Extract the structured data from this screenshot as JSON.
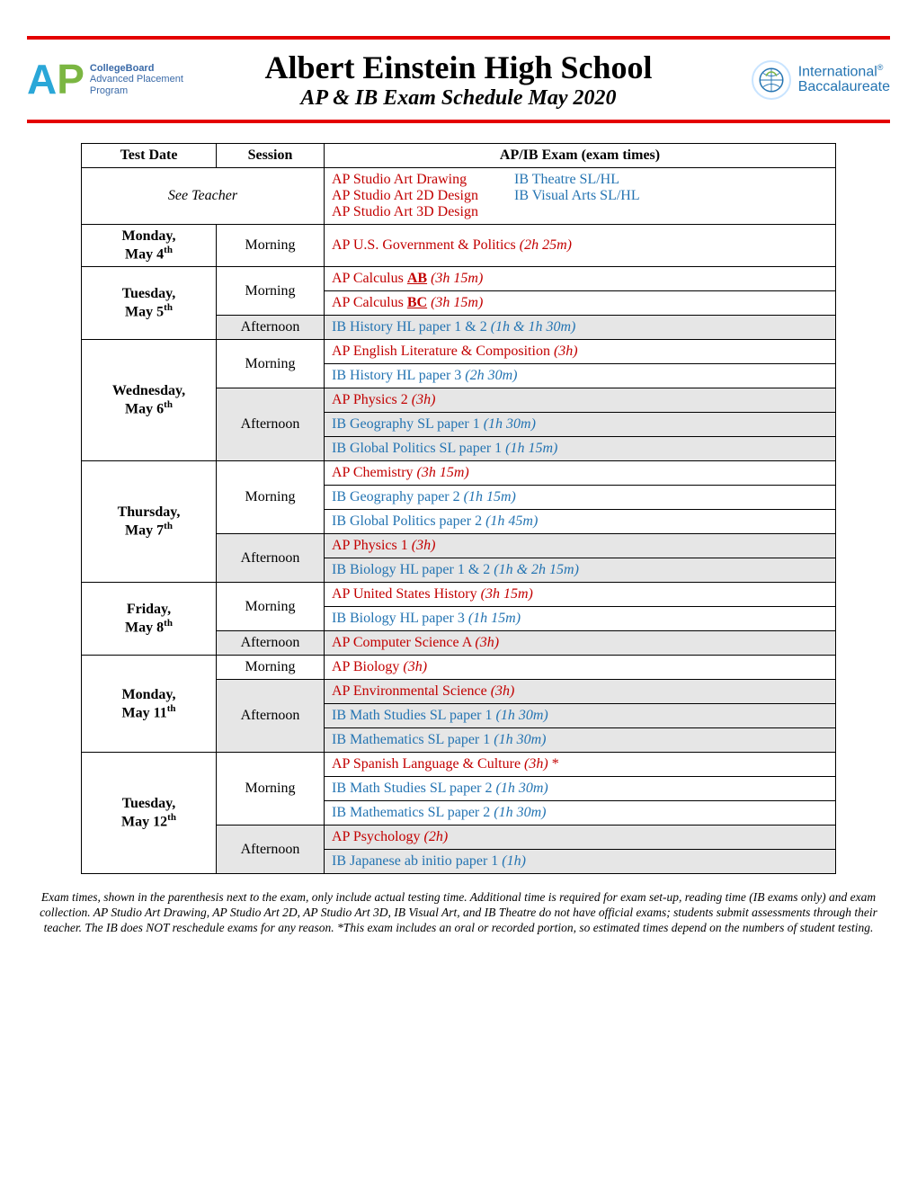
{
  "colors": {
    "red_rule": "#e40000",
    "ap_red": "#c20000",
    "ib_blue": "#2474b2",
    "afternoon_bg": "#e6e6e6",
    "ap_a": "#2aa7d8",
    "ap_p": "#7bb642",
    "cb_text": "#3a6aa8"
  },
  "header": {
    "school": "Albert Einstein High School",
    "subtitle": "AP & IB Exam Schedule May 2020",
    "ap_logo": {
      "a": "A",
      "p": "P",
      "cb": "CollegeBoard",
      "sub1": "Advanced Placement",
      "sub2": "Program"
    },
    "ib_logo": {
      "line1": "International",
      "line2": "Baccalaureate",
      "reg": "®"
    }
  },
  "columns": {
    "date": "Test Date",
    "session": "Session",
    "exam": "AP/IB Exam (exam times)"
  },
  "see_teacher": {
    "label": "See Teacher",
    "ap": [
      "AP Studio Art Drawing",
      "AP Studio Art 2D Design",
      "AP Studio Art 3D Design"
    ],
    "ib": [
      "IB Theatre SL/HL",
      "IB Visual Arts SL/HL"
    ]
  },
  "rows": [
    {
      "day_name": "Monday,",
      "day_date": "May 4",
      "day_sup": "th",
      "sessions": [
        {
          "name": "Morning",
          "aft": false,
          "exams": [
            {
              "type": "ap",
              "text": "AP U.S. Government & Politics ",
              "time": "(2h 25m)"
            }
          ]
        }
      ]
    },
    {
      "day_name": "Tuesday,",
      "day_date": "May 5",
      "day_sup": "th",
      "sessions": [
        {
          "name": "Morning",
          "aft": false,
          "exams": [
            {
              "type": "ap",
              "prefix": "AP Calculus ",
              "underline": "AB",
              "time": " (3h 15m)"
            },
            {
              "type": "ap",
              "prefix": "AP Calculus ",
              "underline": "BC",
              "time": " (3h 15m)"
            }
          ]
        },
        {
          "name": "Afternoon",
          "aft": true,
          "exams": [
            {
              "type": "ib",
              "text": "IB History HL paper 1 & 2 ",
              "time": "(1h & 1h 30m)"
            }
          ]
        }
      ]
    },
    {
      "day_name": "Wednesday,",
      "day_date": "May 6",
      "day_sup": "th",
      "sessions": [
        {
          "name": "Morning",
          "aft": false,
          "exams": [
            {
              "type": "ap",
              "text": "AP English Literature & Composition ",
              "time": "(3h)"
            },
            {
              "type": "ib",
              "text": "IB History HL paper 3 ",
              "time": "(2h 30m)"
            }
          ]
        },
        {
          "name": "Afternoon",
          "aft": true,
          "exams": [
            {
              "type": "ap",
              "text": "AP Physics 2 ",
              "time": "(3h)"
            },
            {
              "type": "ib",
              "text": "IB Geography SL paper 1 ",
              "time": "(1h 30m)"
            },
            {
              "type": "ib",
              "text": "IB Global Politics SL paper 1 ",
              "time": "(1h 15m)"
            }
          ]
        }
      ]
    },
    {
      "day_name": "Thursday,",
      "day_date": "May 7",
      "day_sup": "th",
      "sessions": [
        {
          "name": "Morning",
          "aft": false,
          "exams": [
            {
              "type": "ap",
              "text": "AP Chemistry ",
              "time": "(3h 15m)"
            },
            {
              "type": "ib",
              "text": "IB Geography paper 2 ",
              "time": "(1h 15m)"
            },
            {
              "type": "ib",
              "text": "IB Global Politics paper 2 ",
              "time": "(1h 45m)"
            }
          ]
        },
        {
          "name": "Afternoon",
          "aft": true,
          "exams": [
            {
              "type": "ap",
              "text": "AP Physics 1 ",
              "time": "(3h)"
            },
            {
              "type": "ib",
              "text": "IB Biology HL paper 1 & 2 ",
              "time": "(1h & 2h 15m)"
            }
          ]
        }
      ]
    },
    {
      "day_name": "Friday,",
      "day_date": "May 8",
      "day_sup": "th",
      "sessions": [
        {
          "name": "Morning",
          "aft": false,
          "exams": [
            {
              "type": "ap",
              "text": "AP United States History ",
              "time": "(3h 15m)"
            },
            {
              "type": "ib",
              "text": "IB Biology HL paper 3 ",
              "time": "(1h 15m)"
            }
          ]
        },
        {
          "name": "Afternoon",
          "aft": true,
          "exams": [
            {
              "type": "ap",
              "text": "AP Computer Science A ",
              "time": "(3h)"
            }
          ]
        }
      ]
    },
    {
      "day_name": "Monday,",
      "day_date": "May 11",
      "day_sup": "th",
      "sessions": [
        {
          "name": "Morning",
          "aft": false,
          "exams": [
            {
              "type": "ap",
              "text": "AP Biology ",
              "time": "(3h)"
            }
          ]
        },
        {
          "name": "Afternoon",
          "aft": true,
          "exams": [
            {
              "type": "ap",
              "text": "AP Environmental Science ",
              "time": "(3h)"
            },
            {
              "type": "ib",
              "text": "IB Math Studies SL paper 1 ",
              "time": "(1h 30m)"
            },
            {
              "type": "ib",
              "text": "IB Mathematics SL paper 1 ",
              "time": "(1h 30m)"
            }
          ]
        }
      ]
    },
    {
      "day_name": "Tuesday,",
      "day_date": "May 12",
      "day_sup": "th",
      "sessions": [
        {
          "name": "Morning",
          "aft": false,
          "exams": [
            {
              "type": "ap",
              "text": "AP Spanish Language & Culture ",
              "time": "(3h)",
              "suffix": " *"
            },
            {
              "type": "ib",
              "text": "IB Math Studies SL paper 2 ",
              "time": "(1h 30m)"
            },
            {
              "type": "ib",
              "text": "IB Mathematics SL paper 2 ",
              "time": "(1h 30m)"
            }
          ]
        },
        {
          "name": "Afternoon",
          "aft": true,
          "exams": [
            {
              "type": "ap",
              "text": "AP Psychology ",
              "time": "(2h)"
            },
            {
              "type": "ib",
              "text": "IB Japanese ab initio paper 1 ",
              "time": "(1h)"
            }
          ]
        }
      ]
    }
  ],
  "footer": "Exam times, shown in the parenthesis next to the exam, only include actual testing time. Additional time is required for exam set-up, reading time (IB exams only) and exam collection. AP Studio Art Drawing, AP Studio Art 2D, AP Studio Art 3D, IB Visual Art, and IB Theatre do not have official exams; students submit assessments through their teacher. The IB does NOT reschedule exams for any reason. *This exam includes an oral or recorded portion, so estimated times depend on the numbers of student testing."
}
